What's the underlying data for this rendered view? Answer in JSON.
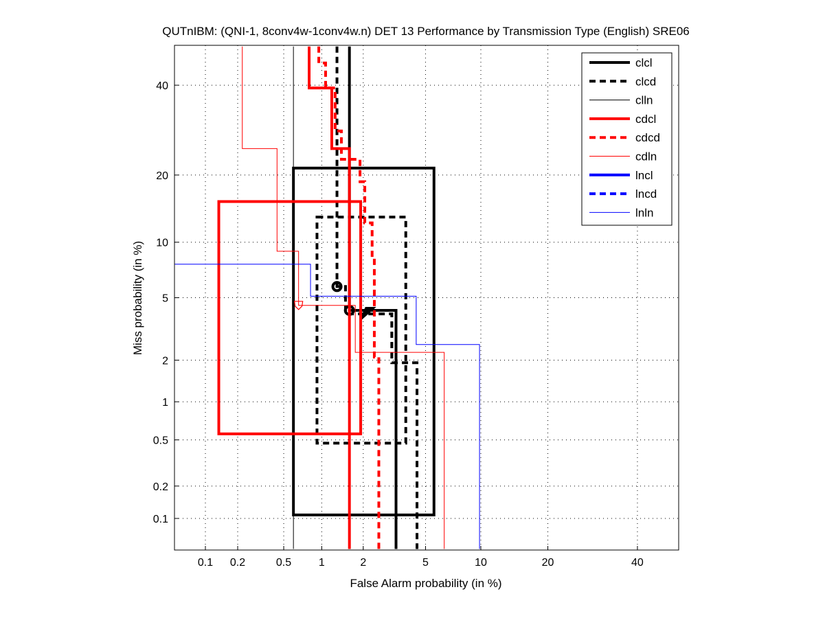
{
  "chart_data": {
    "type": "line",
    "subtype": "DET",
    "title": "QUTnIBM: (QNI-1, 8conv4w-1conv4w.n) DET 13 Performance by Transmission Type (English) SRE06",
    "xlabel": "False Alarm probability (in %)",
    "ylabel": "Miss probability (in %)",
    "xlim": [
      0.05,
      50
    ],
    "ylim": [
      0.05,
      50
    ],
    "xticks": [
      0.1,
      0.2,
      0.5,
      1,
      2,
      5,
      10,
      20,
      40
    ],
    "xtick_labels": [
      "0.1",
      "0.2",
      "0.5",
      "1",
      "2",
      "5",
      "10",
      "20",
      "40"
    ],
    "yticks": [
      0.1,
      0.2,
      0.5,
      1,
      2,
      5,
      10,
      20,
      40
    ],
    "ytick_labels": [
      "0.1",
      "0.2",
      "0.5",
      "1",
      "2",
      "5",
      "10",
      "20",
      "40"
    ],
    "grid": true,
    "legend_position": "top-right",
    "series": [
      {
        "name": "clcl",
        "color": "#000000",
        "style": "solid",
        "width": 4,
        "points": [
          [
            1.6,
            50
          ],
          [
            1.6,
            4.2
          ],
          [
            3.3,
            4.2
          ],
          [
            3.3,
            0.05
          ]
        ],
        "box": {
          "fa": [
            0.6,
            5.6
          ],
          "miss": [
            0.108,
            21.3
          ]
        },
        "markers": [
          {
            "fa": 1.6,
            "miss": 4.2,
            "shape": "circle"
          },
          {
            "fa": 2.0,
            "miss": 4.1,
            "shape": "triangle"
          }
        ]
      },
      {
        "name": "clcd",
        "color": "#000000",
        "style": "dashed",
        "width": 4,
        "points": [
          [
            1.3,
            50
          ],
          [
            1.3,
            5.8
          ],
          [
            1.5,
            5.8
          ],
          [
            1.5,
            4.0
          ],
          [
            3.1,
            4.0
          ],
          [
            3.1,
            1.92
          ],
          [
            4.45,
            1.92
          ],
          [
            4.45,
            0.05
          ]
        ],
        "box": {
          "fa": [
            0.92,
            3.8
          ],
          "miss": [
            0.47,
            13.2
          ]
        },
        "markers": [
          {
            "fa": 1.3,
            "miss": 5.8,
            "shape": "circle"
          }
        ]
      },
      {
        "name": "clln",
        "color": "#000000",
        "style": "solid",
        "width": 1,
        "points": [
          [
            0.6,
            50
          ],
          [
            0.6,
            0.05
          ]
        ]
      },
      {
        "name": "cdcl",
        "color": "#ff0000",
        "style": "solid",
        "width": 4,
        "points": [
          [
            0.8,
            50
          ],
          [
            0.8,
            39.3
          ],
          [
            1.19,
            39.3
          ],
          [
            1.19,
            25.2
          ],
          [
            1.6,
            25.2
          ],
          [
            1.6,
            0.05
          ]
        ],
        "box": {
          "fa": [
            0.134,
            1.92
          ],
          "miss": [
            0.56,
            15.5
          ]
        }
      },
      {
        "name": "cdcd",
        "color": "#ff0000",
        "style": "dashed",
        "width": 4,
        "points": [
          [
            0.95,
            50
          ],
          [
            0.95,
            45.7
          ],
          [
            1.07,
            45.7
          ],
          [
            1.07,
            39.3
          ],
          [
            1.26,
            39.3
          ],
          [
            1.26,
            29
          ],
          [
            1.4,
            29
          ],
          [
            1.4,
            23
          ],
          [
            1.9,
            23
          ],
          [
            1.9,
            18.8
          ],
          [
            2.05,
            18.8
          ],
          [
            2.05,
            12.4
          ],
          [
            2.3,
            12.4
          ],
          [
            2.3,
            8.4
          ],
          [
            2.38,
            8.4
          ],
          [
            2.38,
            2.1
          ],
          [
            2.55,
            2.1
          ],
          [
            2.55,
            0.05
          ]
        ]
      },
      {
        "name": "cdln",
        "color": "#ff0000",
        "style": "solid",
        "width": 1,
        "points": [
          [
            0.22,
            50
          ],
          [
            0.22,
            25.2
          ],
          [
            0.44,
            25.2
          ],
          [
            0.44,
            9.0
          ],
          [
            0.66,
            9.0
          ],
          [
            0.66,
            4.5
          ],
          [
            1.76,
            4.5
          ],
          [
            1.76,
            2.26
          ],
          [
            6.4,
            2.26
          ],
          [
            6.4,
            0.05
          ]
        ],
        "markers": [
          {
            "fa": 0.66,
            "miss": 4.5,
            "shape": "shield"
          }
        ]
      },
      {
        "name": "lncl",
        "color": "#0000ff",
        "style": "solid",
        "width": 4,
        "points": []
      },
      {
        "name": "lncd",
        "color": "#0000ff",
        "style": "dashed",
        "width": 4,
        "points": []
      },
      {
        "name": "lnln",
        "color": "#0000ff",
        "style": "solid",
        "width": 1,
        "points": [
          [
            0.05,
            7.7
          ],
          [
            0.82,
            7.7
          ],
          [
            0.82,
            5.1
          ],
          [
            4.4,
            5.1
          ],
          [
            4.4,
            2.55
          ],
          [
            9.85,
            2.55
          ],
          [
            9.85,
            0.05
          ]
        ]
      }
    ]
  }
}
